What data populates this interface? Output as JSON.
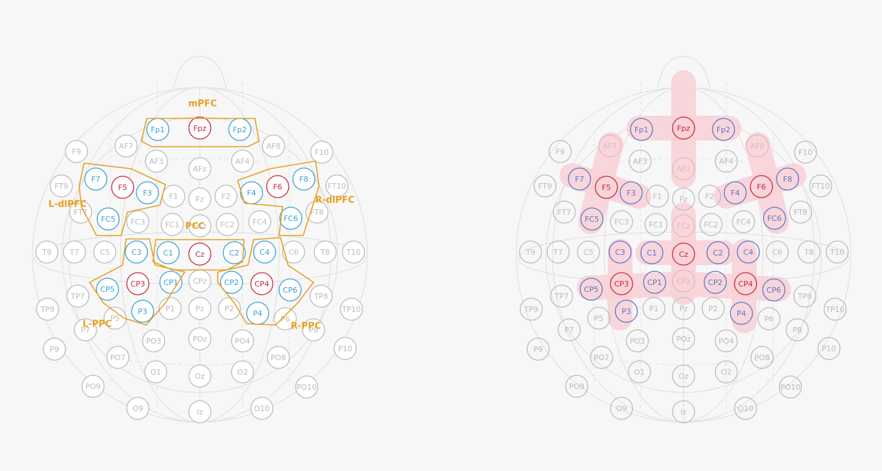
{
  "left_map": {
    "regions": [
      {
        "label": "mPFC"
      },
      {
        "label": "L-dlPFC"
      },
      {
        "label": "R-dlPFC"
      },
      {
        "label": "PCC"
      },
      {
        "label": "L-PPC"
      },
      {
        "label": "R-PPC"
      }
    ],
    "region_color": "#e8a020",
    "electrodes": [
      {
        "label": "Fp1",
        "color": "#3aa0d8"
      },
      {
        "label": "Fpz",
        "color": "#c8283a"
      },
      {
        "label": "Fp2",
        "color": "#3aa0d8"
      },
      {
        "label": "AF7",
        "color": "#bbbbbb"
      },
      {
        "label": "AF3",
        "color": "#bbbbbb"
      },
      {
        "label": "AFz",
        "color": "#bbbbbb"
      },
      {
        "label": "AF4",
        "color": "#bbbbbb"
      },
      {
        "label": "AF8",
        "color": "#bbbbbb"
      },
      {
        "label": "F9",
        "color": "#bbbbbb"
      },
      {
        "label": "F10",
        "color": "#bbbbbb"
      },
      {
        "label": "FT9",
        "color": "#bbbbbb"
      },
      {
        "label": "FT10",
        "color": "#bbbbbb"
      },
      {
        "label": "F7",
        "color": "#3aa0d8"
      },
      {
        "label": "F5",
        "color": "#c8283a"
      },
      {
        "label": "F3",
        "color": "#3aa0d8"
      },
      {
        "label": "F1",
        "color": "#bbbbbb"
      },
      {
        "label": "Fz",
        "color": "#bbbbbb"
      },
      {
        "label": "F2",
        "color": "#bbbbbb"
      },
      {
        "label": "F4",
        "color": "#3aa0d8"
      },
      {
        "label": "F6",
        "color": "#c8283a"
      },
      {
        "label": "F8",
        "color": "#3aa0d8"
      },
      {
        "label": "FT7",
        "color": "#bbbbbb"
      },
      {
        "label": "FC5",
        "color": "#3aa0d8"
      },
      {
        "label": "FC3",
        "color": "#bbbbbb"
      },
      {
        "label": "FC1",
        "color": "#bbbbbb"
      },
      {
        "label": "FCz",
        "color": "#bbbbbb"
      },
      {
        "label": "FC2",
        "color": "#bbbbbb"
      },
      {
        "label": "FC4",
        "color": "#bbbbbb"
      },
      {
        "label": "FC6",
        "color": "#3aa0d8"
      },
      {
        "label": "FT8",
        "color": "#bbbbbb"
      },
      {
        "label": "T9",
        "color": "#bbbbbb"
      },
      {
        "label": "T7",
        "color": "#bbbbbb"
      },
      {
        "label": "C5",
        "color": "#bbbbbb"
      },
      {
        "label": "C3",
        "color": "#3aa0d8"
      },
      {
        "label": "C1",
        "color": "#3aa0d8"
      },
      {
        "label": "Cz",
        "color": "#c8283a"
      },
      {
        "label": "C2",
        "color": "#3aa0d8"
      },
      {
        "label": "C4",
        "color": "#3aa0d8"
      },
      {
        "label": "C6",
        "color": "#bbbbbb"
      },
      {
        "label": "T8",
        "color": "#bbbbbb"
      },
      {
        "label": "T10",
        "color": "#bbbbbb"
      },
      {
        "label": "TP7",
        "color": "#bbbbbb"
      },
      {
        "label": "CP5",
        "color": "#3aa0d8"
      },
      {
        "label": "CP3",
        "color": "#c8283a"
      },
      {
        "label": "CP1",
        "color": "#3aa0d8"
      },
      {
        "label": "CPz",
        "color": "#bbbbbb"
      },
      {
        "label": "CP2",
        "color": "#3aa0d8"
      },
      {
        "label": "CP4",
        "color": "#c8283a"
      },
      {
        "label": "CP6",
        "color": "#3aa0d8"
      },
      {
        "label": "TP8",
        "color": "#bbbbbb"
      },
      {
        "label": "TP9",
        "color": "#bbbbbb"
      },
      {
        "label": "TP10",
        "color": "#bbbbbb"
      },
      {
        "label": "P7",
        "color": "#bbbbbb"
      },
      {
        "label": "P5",
        "color": "#bbbbbb"
      },
      {
        "label": "P3",
        "color": "#3aa0d8"
      },
      {
        "label": "P1",
        "color": "#bbbbbb"
      },
      {
        "label": "Pz",
        "color": "#bbbbbb"
      },
      {
        "label": "P2",
        "color": "#bbbbbb"
      },
      {
        "label": "P4",
        "color": "#3aa0d8"
      },
      {
        "label": "P6",
        "color": "#bbbbbb"
      },
      {
        "label": "P8",
        "color": "#bbbbbb"
      },
      {
        "label": "P9",
        "color": "#bbbbbb"
      },
      {
        "label": "P10",
        "color": "#bbbbbb"
      },
      {
        "label": "PO7",
        "color": "#bbbbbb"
      },
      {
        "label": "PO3",
        "color": "#bbbbbb"
      },
      {
        "label": "POz",
        "color": "#bbbbbb"
      },
      {
        "label": "PO4",
        "color": "#bbbbbb"
      },
      {
        "label": "PO8",
        "color": "#bbbbbb"
      },
      {
        "label": "PO9",
        "color": "#bbbbbb"
      },
      {
        "label": "O1",
        "color": "#bbbbbb"
      },
      {
        "label": "Oz",
        "color": "#bbbbbb"
      },
      {
        "label": "O2",
        "color": "#bbbbbb"
      },
      {
        "label": "PO10",
        "color": "#bbbbbb"
      },
      {
        "label": "O9",
        "color": "#bbbbbb"
      },
      {
        "label": "Iz",
        "color": "#bbbbbb"
      },
      {
        "label": "O10",
        "color": "#bbbbbb"
      }
    ]
  },
  "right_map": {
    "highlight_color": "#f9d3d8",
    "electrodes": [
      {
        "label": "Fp1",
        "color": "#5a78c8"
      },
      {
        "label": "Fpz",
        "color": "#c8283a"
      },
      {
        "label": "Fp2",
        "color": "#5a78c8"
      },
      {
        "label": "AF7",
        "color": "#e2b8bd"
      },
      {
        "label": "AF3",
        "color": "#bbbbbb"
      },
      {
        "label": "AFz",
        "color": "#e2b8bd"
      },
      {
        "label": "AF4",
        "color": "#bbbbbb"
      },
      {
        "label": "AF8",
        "color": "#e2b8bd"
      },
      {
        "label": "F9",
        "color": "#bbbbbb"
      },
      {
        "label": "F10",
        "color": "#bbbbbb"
      },
      {
        "label": "FT9",
        "color": "#bbbbbb"
      },
      {
        "label": "FT10",
        "color": "#bbbbbb"
      },
      {
        "label": "F7",
        "color": "#5a78c8"
      },
      {
        "label": "F5",
        "color": "#c8283a"
      },
      {
        "label": "F3",
        "color": "#5a78c8"
      },
      {
        "label": "F1",
        "color": "#bbbbbb"
      },
      {
        "label": "Fz",
        "color": "#bbbbbb"
      },
      {
        "label": "F2",
        "color": "#bbbbbb"
      },
      {
        "label": "F4",
        "color": "#5a78c8"
      },
      {
        "label": "F6",
        "color": "#c8283a"
      },
      {
        "label": "F8",
        "color": "#5a78c8"
      },
      {
        "label": "FT7",
        "color": "#bbbbbb"
      },
      {
        "label": "FC5",
        "color": "#5a78c8"
      },
      {
        "label": "FC3",
        "color": "#bbbbbb"
      },
      {
        "label": "FC1",
        "color": "#bbbbbb"
      },
      {
        "label": "FCz",
        "color": "#e2b8bd"
      },
      {
        "label": "FC2",
        "color": "#bbbbbb"
      },
      {
        "label": "FC4",
        "color": "#bbbbbb"
      },
      {
        "label": "FC6",
        "color": "#5a78c8"
      },
      {
        "label": "FT8",
        "color": "#bbbbbb"
      },
      {
        "label": "T9",
        "color": "#bbbbbb"
      },
      {
        "label": "T7",
        "color": "#bbbbbb"
      },
      {
        "label": "C5",
        "color": "#bbbbbb"
      },
      {
        "label": "C3",
        "color": "#5a78c8"
      },
      {
        "label": "C1",
        "color": "#5a78c8"
      },
      {
        "label": "Cz",
        "color": "#c8283a"
      },
      {
        "label": "C2",
        "color": "#5a78c8"
      },
      {
        "label": "C4",
        "color": "#5a78c8"
      },
      {
        "label": "C6",
        "color": "#bbbbbb"
      },
      {
        "label": "T8",
        "color": "#bbbbbb"
      },
      {
        "label": "T10",
        "color": "#bbbbbb"
      },
      {
        "label": "TP7",
        "color": "#bbbbbb"
      },
      {
        "label": "CP5",
        "color": "#5a78c8"
      },
      {
        "label": "CP3",
        "color": "#c8283a"
      },
      {
        "label": "CP1",
        "color": "#5a78c8"
      },
      {
        "label": "CPz",
        "color": "#e2b8bd"
      },
      {
        "label": "CP2",
        "color": "#5a78c8"
      },
      {
        "label": "CP4",
        "color": "#c8283a"
      },
      {
        "label": "CP6",
        "color": "#5a78c8"
      },
      {
        "label": "TP8",
        "color": "#bbbbbb"
      },
      {
        "label": "TP9",
        "color": "#bbbbbb"
      },
      {
        "label": "TP10",
        "color": "#bbbbbb"
      },
      {
        "label": "P7",
        "color": "#bbbbbb"
      },
      {
        "label": "P5",
        "color": "#bbbbbb"
      },
      {
        "label": "P3",
        "color": "#5a78c8"
      },
      {
        "label": "P1",
        "color": "#bbbbbb"
      },
      {
        "label": "Pz",
        "color": "#bbbbbb"
      },
      {
        "label": "P2",
        "color": "#bbbbbb"
      },
      {
        "label": "P4",
        "color": "#5a78c8"
      },
      {
        "label": "P6",
        "color": "#bbbbbb"
      },
      {
        "label": "P8",
        "color": "#bbbbbb"
      },
      {
        "label": "P9",
        "color": "#bbbbbb"
      },
      {
        "label": "P10",
        "color": "#bbbbbb"
      },
      {
        "label": "PO7",
        "color": "#bbbbbb"
      },
      {
        "label": "PO3",
        "color": "#bbbbbb"
      },
      {
        "label": "POz",
        "color": "#bbbbbb"
      },
      {
        "label": "PO4",
        "color": "#bbbbbb"
      },
      {
        "label": "PO8",
        "color": "#bbbbbb"
      },
      {
        "label": "PO9",
        "color": "#bbbbbb"
      },
      {
        "label": "O1",
        "color": "#bbbbbb"
      },
      {
        "label": "Oz",
        "color": "#bbbbbb"
      },
      {
        "label": "O2",
        "color": "#bbbbbb"
      },
      {
        "label": "PO10",
        "color": "#bbbbbb"
      },
      {
        "label": "O9",
        "color": "#bbbbbb"
      },
      {
        "label": "Iz",
        "color": "#bbbbbb"
      },
      {
        "label": "O10",
        "color": "#bbbbbb"
      }
    ]
  }
}
